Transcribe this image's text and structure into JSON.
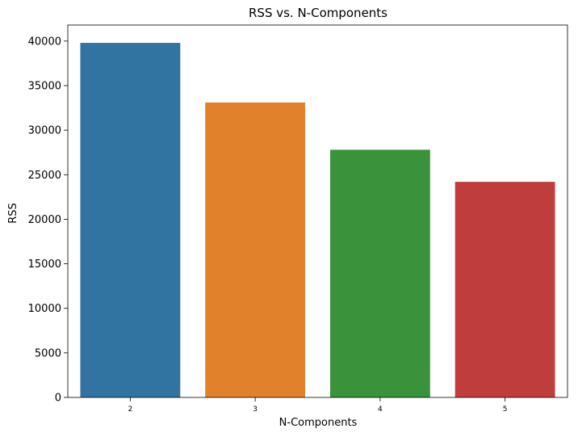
{
  "chart_data": {
    "type": "bar",
    "title": "RSS vs. N-Components",
    "xlabel": "N-Components",
    "ylabel": "RSS",
    "categories": [
      "2",
      "3",
      "4",
      "5"
    ],
    "values": [
      39800,
      33100,
      27800,
      24200
    ],
    "ylim": [
      0,
      41800
    ],
    "yticks": [
      0,
      5000,
      10000,
      15000,
      20000,
      25000,
      30000,
      35000,
      40000
    ],
    "colors": [
      "#3274a1",
      "#e1812c",
      "#3a923a",
      "#c03d3e"
    ],
    "grid": false,
    "legend": "none"
  }
}
